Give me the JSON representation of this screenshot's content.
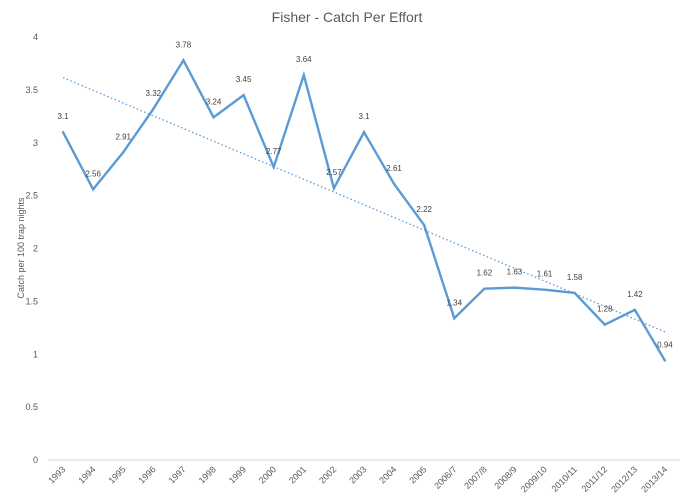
{
  "chart_data": {
    "type": "line",
    "title": "Fisher - Catch Per Effort",
    "xlabel": "",
    "ylabel": "Catch per 100 trap nights",
    "ylim": [
      0,
      4
    ],
    "yticks": [
      "0",
      "0.5",
      "1",
      "1.5",
      "2",
      "2.5",
      "3",
      "3.5",
      "4"
    ],
    "categories": [
      "1993",
      "1994",
      "1995",
      "1996",
      "1997",
      "1998",
      "1999",
      "2000",
      "2001",
      "2002",
      "2003",
      "2004",
      "2005",
      "2006/7",
      "2007/8",
      "2008/9",
      "2009/10",
      "2010/11",
      "2011/12",
      "2012/13",
      "2013/14"
    ],
    "series": [
      {
        "values": [
          3.1,
          2.56,
          2.91,
          3.32,
          3.78,
          3.24,
          3.45,
          2.77,
          3.64,
          2.57,
          3.1,
          2.61,
          2.22,
          1.34,
          1.62,
          1.63,
          1.61,
          1.58,
          1.28,
          1.42,
          0.94
        ],
        "labels": [
          "3.1",
          "2.56",
          "2.91",
          "3.32",
          "3.78",
          "3.24",
          "3.45",
          "2.77",
          "3.64",
          "2.57",
          "3.1",
          "2.61",
          "2.22",
          "1.34",
          "1.62",
          "1.63",
          "1.61",
          "1.58",
          "1.28",
          "1.42",
          "0.94"
        ],
        "color": "#5B9BD5",
        "trendline": "linear"
      }
    ],
    "grid": false,
    "legend": "none"
  }
}
